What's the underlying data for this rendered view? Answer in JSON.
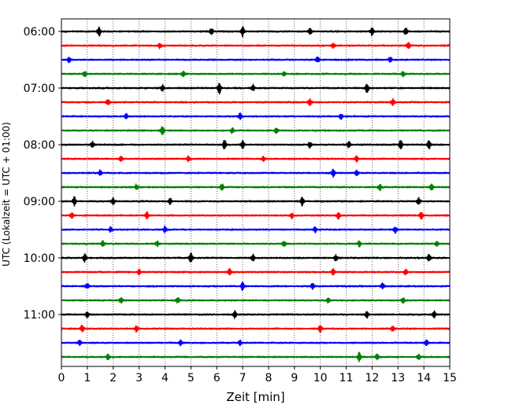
{
  "chart_data": {
    "type": "line",
    "title": "",
    "xlabel": "Zeit  [min]",
    "ylabel": "UTC (Lokalzeit = UTC + 01:00)",
    "xlim": [
      0,
      15
    ],
    "x_ticks": [
      0,
      1,
      2,
      3,
      4,
      5,
      6,
      7,
      8,
      9,
      10,
      11,
      12,
      13,
      14,
      15
    ],
    "y_tick_labels": [
      "06:00",
      "07:00",
      "08:00",
      "09:00",
      "10:00",
      "11:00"
    ],
    "grid": "vertical dotted",
    "trace_interval_minutes": 15,
    "trace_start_times": [
      "06:00",
      "06:15",
      "06:30",
      "06:45",
      "07:00",
      "07:15",
      "07:30",
      "07:45",
      "08:00",
      "08:15",
      "08:30",
      "08:45",
      "09:00",
      "09:15",
      "09:30",
      "09:45",
      "10:00",
      "10:15",
      "10:30",
      "10:45",
      "11:00",
      "11:15",
      "11:30",
      "11:45"
    ],
    "trace_colors": [
      "#000000",
      "#ff0000",
      "#0000ff",
      "#008000"
    ],
    "series": [
      {
        "start": "06:00",
        "events": [
          [
            1.45,
            1.0
          ],
          [
            5.8,
            0.6
          ],
          [
            7.0,
            0.9
          ],
          [
            9.6,
            0.5
          ],
          [
            12.0,
            0.8
          ],
          [
            13.3,
            0.7
          ]
        ]
      },
      {
        "start": "06:15",
        "events": [
          [
            3.8,
            0.5
          ],
          [
            10.5,
            0.5
          ],
          [
            13.4,
            0.6
          ]
        ]
      },
      {
        "start": "06:30",
        "events": [
          [
            0.3,
            0.5
          ],
          [
            9.9,
            0.6
          ],
          [
            12.7,
            0.5
          ]
        ]
      },
      {
        "start": "06:45",
        "events": [
          [
            0.9,
            0.5
          ],
          [
            4.7,
            0.5
          ],
          [
            8.6,
            0.4
          ],
          [
            13.2,
            0.5
          ]
        ]
      },
      {
        "start": "07:00",
        "events": [
          [
            3.9,
            0.6
          ],
          [
            6.1,
            1.0
          ],
          [
            7.4,
            0.6
          ],
          [
            11.8,
            0.9
          ]
        ]
      },
      {
        "start": "07:15",
        "events": [
          [
            1.8,
            0.5
          ],
          [
            9.6,
            0.6
          ],
          [
            12.8,
            0.6
          ]
        ]
      },
      {
        "start": "07:30",
        "events": [
          [
            2.5,
            0.5
          ],
          [
            6.9,
            0.6
          ],
          [
            10.8,
            0.5
          ]
        ]
      },
      {
        "start": "07:45",
        "events": [
          [
            3.9,
            0.9
          ],
          [
            6.6,
            0.5
          ],
          [
            8.3,
            0.5
          ]
        ]
      },
      {
        "start": "08:00",
        "events": [
          [
            1.2,
            0.6
          ],
          [
            6.3,
            0.9
          ],
          [
            7.0,
            0.7
          ],
          [
            9.6,
            0.6
          ],
          [
            11.1,
            0.6
          ],
          [
            13.1,
            0.9
          ],
          [
            14.2,
            0.8
          ]
        ]
      },
      {
        "start": "08:15",
        "events": [
          [
            2.3,
            0.5
          ],
          [
            4.9,
            0.5
          ],
          [
            7.8,
            0.4
          ],
          [
            11.4,
            0.5
          ]
        ]
      },
      {
        "start": "08:30",
        "events": [
          [
            1.5,
            0.5
          ],
          [
            10.5,
            0.8
          ],
          [
            11.4,
            0.6
          ]
        ]
      },
      {
        "start": "08:45",
        "events": [
          [
            2.9,
            0.5
          ],
          [
            6.2,
            0.6
          ],
          [
            12.3,
            0.6
          ],
          [
            14.3,
            0.6
          ]
        ]
      },
      {
        "start": "09:00",
        "events": [
          [
            0.5,
            0.8
          ],
          [
            2.0,
            0.6
          ],
          [
            4.2,
            0.6
          ],
          [
            9.3,
            0.8
          ],
          [
            13.8,
            0.7
          ]
        ]
      },
      {
        "start": "09:15",
        "events": [
          [
            0.4,
            0.5
          ],
          [
            3.3,
            0.6
          ],
          [
            8.9,
            0.5
          ],
          [
            10.7,
            0.7
          ],
          [
            13.9,
            0.7
          ]
        ]
      },
      {
        "start": "09:30",
        "events": [
          [
            1.9,
            0.5
          ],
          [
            4.0,
            0.6
          ],
          [
            9.8,
            0.5
          ],
          [
            12.9,
            0.6
          ]
        ]
      },
      {
        "start": "09:45",
        "events": [
          [
            1.6,
            0.5
          ],
          [
            3.7,
            0.5
          ],
          [
            8.6,
            0.5
          ],
          [
            11.5,
            0.5
          ],
          [
            14.5,
            0.5
          ]
        ]
      },
      {
        "start": "10:00",
        "events": [
          [
            0.9,
            0.8
          ],
          [
            5.0,
            1.0
          ],
          [
            7.4,
            0.6
          ],
          [
            10.6,
            0.6
          ],
          [
            14.2,
            0.7
          ]
        ]
      },
      {
        "start": "10:15",
        "events": [
          [
            3.0,
            0.5
          ],
          [
            6.5,
            0.6
          ],
          [
            10.5,
            0.6
          ],
          [
            13.3,
            0.5
          ]
        ]
      },
      {
        "start": "10:30",
        "events": [
          [
            1.0,
            0.5
          ],
          [
            7.0,
            0.8
          ],
          [
            9.7,
            0.6
          ],
          [
            12.4,
            0.6
          ]
        ]
      },
      {
        "start": "10:45",
        "events": [
          [
            2.3,
            0.5
          ],
          [
            4.5,
            0.6
          ],
          [
            10.3,
            0.5
          ],
          [
            13.2,
            0.5
          ]
        ]
      },
      {
        "start": "11:00",
        "events": [
          [
            1.0,
            0.6
          ],
          [
            6.7,
            0.7
          ],
          [
            11.8,
            0.7
          ],
          [
            14.4,
            0.6
          ]
        ]
      },
      {
        "start": "11:15",
        "events": [
          [
            0.8,
            0.7
          ],
          [
            2.9,
            0.6
          ],
          [
            10.0,
            0.6
          ],
          [
            12.8,
            0.5
          ]
        ]
      },
      {
        "start": "11:30",
        "events": [
          [
            0.7,
            0.5
          ],
          [
            4.6,
            0.5
          ],
          [
            6.9,
            0.5
          ],
          [
            14.1,
            0.6
          ]
        ]
      },
      {
        "start": "11:45",
        "events": [
          [
            1.8,
            0.5
          ],
          [
            11.5,
            0.9
          ],
          [
            12.2,
            0.6
          ],
          [
            13.8,
            0.5
          ]
        ]
      }
    ]
  }
}
